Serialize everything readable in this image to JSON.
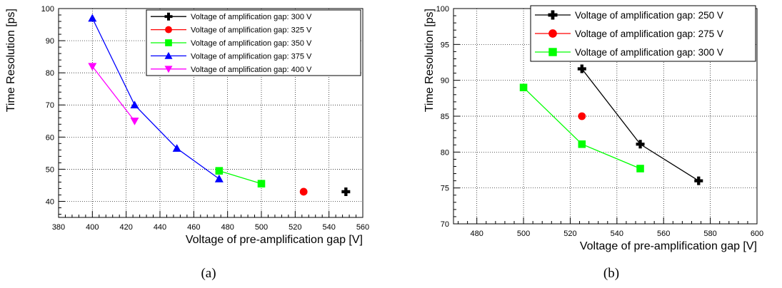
{
  "chart_data": [
    {
      "type": "scatter",
      "panel_label": "(a)",
      "xlabel": "Voltage of pre-amplification gap [V]",
      "ylabel": "Time Resolution [ps]",
      "xlim": [
        380,
        560
      ],
      "ylim": [
        35,
        100
      ],
      "xticks": [
        380,
        400,
        420,
        440,
        460,
        480,
        500,
        520,
        540,
        560
      ],
      "yticks": [
        40,
        50,
        60,
        70,
        80,
        90,
        100
      ],
      "grid": true,
      "legend_position": "top-right",
      "series": [
        {
          "name": "Voltage of amplification gap: 300 V",
          "color": "#000000",
          "marker": "cross",
          "x": [
            550
          ],
          "y": [
            43
          ]
        },
        {
          "name": "Voltage of amplification gap: 325 V",
          "color": "#ff0000",
          "marker": "circle",
          "x": [
            525
          ],
          "y": [
            43
          ]
        },
        {
          "name": "Voltage of amplification gap: 350 V",
          "color": "#00ff00",
          "marker": "square",
          "x": [
            475,
            500
          ],
          "y": [
            49.5,
            45.5
          ]
        },
        {
          "name": "Voltage of amplification gap: 375 V",
          "color": "#0000ff",
          "marker": "triangle-up",
          "x": [
            400,
            425,
            450,
            475
          ],
          "y": [
            97,
            70,
            56.5,
            47
          ]
        },
        {
          "name": "Voltage of amplification gap: 400 V",
          "color": "#ff00ff",
          "marker": "triangle-down",
          "x": [
            400,
            425
          ],
          "y": [
            82,
            65
          ]
        }
      ]
    },
    {
      "type": "scatter",
      "panel_label": "(b)",
      "xlabel": "Voltage of pre-amplification gap [V]",
      "ylabel": "Time Resolution [ps]",
      "xlim": [
        470,
        600
      ],
      "ylim": [
        70,
        100
      ],
      "xticks": [
        480,
        500,
        520,
        540,
        560,
        580,
        600
      ],
      "yticks": [
        70,
        75,
        80,
        85,
        90,
        95,
        100
      ],
      "grid": true,
      "legend_position": "top-right",
      "series": [
        {
          "name": "Voltage of amplification gap: 250 V",
          "color": "#000000",
          "marker": "cross",
          "x": [
            525,
            550,
            575
          ],
          "y": [
            91.6,
            81.1,
            76
          ]
        },
        {
          "name": "Voltage of amplification gap: 275 V",
          "color": "#ff0000",
          "marker": "circle",
          "x": [
            525
          ],
          "y": [
            85
          ]
        },
        {
          "name": "Voltage of amplification gap: 300 V",
          "color": "#00ff00",
          "marker": "square",
          "x": [
            500,
            525,
            550
          ],
          "y": [
            89,
            81.1,
            77.7
          ]
        }
      ]
    }
  ]
}
